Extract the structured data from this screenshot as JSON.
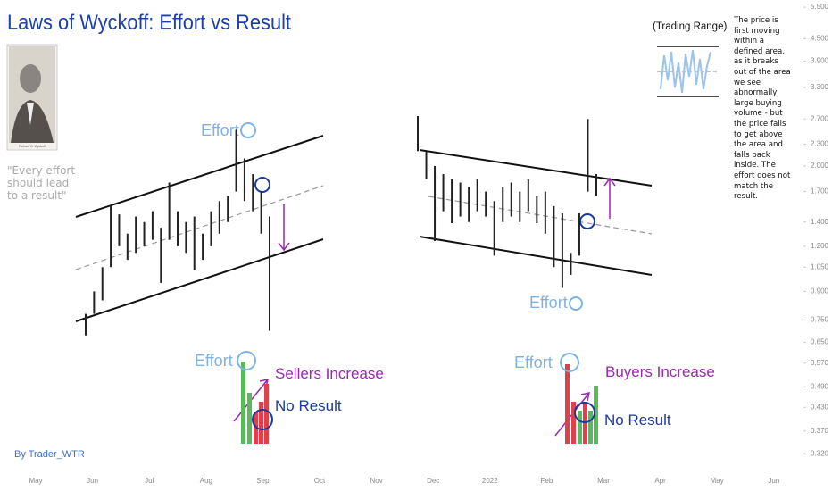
{
  "chart_data": {
    "type": "ohlc",
    "title": "Laws of Wyckoff: Effort vs Result",
    "color": "#222222",
    "yscale": "log",
    "ylim": [
      0.286,
      5.76
    ],
    "yticks": [
      {
        "value": 5.5,
        "label": "5.500"
      },
      {
        "value": 4.5,
        "label": "4.500"
      },
      {
        "value": 3.9,
        "label": "3.900"
      },
      {
        "value": 3.3,
        "label": "3.300"
      },
      {
        "value": 2.7,
        "label": "2.700"
      },
      {
        "value": 2.3,
        "label": "2.300"
      },
      {
        "value": 2.0,
        "label": "2.000"
      },
      {
        "value": 1.7,
        "label": "1.700"
      },
      {
        "value": 1.4,
        "label": "1.400"
      },
      {
        "value": 1.2,
        "label": "1.200"
      },
      {
        "value": 1.05,
        "label": "1.050"
      },
      {
        "value": 0.9,
        "label": "0.900"
      },
      {
        "value": 0.75,
        "label": "0.750"
      },
      {
        "value": 0.65,
        "label": "0.650"
      },
      {
        "value": 0.57,
        "label": "0.570"
      },
      {
        "value": 0.49,
        "label": "0.490"
      },
      {
        "value": 0.43,
        "label": "0.430"
      },
      {
        "value": 0.37,
        "label": "0.370"
      },
      {
        "value": 0.32,
        "label": "0.320"
      }
    ],
    "categories": [
      "May",
      "Jun",
      "Jul",
      "Aug",
      "Sep",
      "Oct",
      "Nov",
      "Dec",
      "2022",
      "Feb",
      "Mar",
      "Apr",
      "May",
      "Jun"
    ],
    "segments": [
      {
        "high": [
          0.78,
          0.9,
          1.05,
          1.56,
          1.47,
          1.3,
          1.45,
          1.4,
          1.5,
          1.35,
          1.8,
          1.5,
          1.4,
          1.45,
          1.3,
          1.5,
          1.6,
          1.65,
          2.52,
          2.1,
          1.9,
          1.7,
          1.45
        ],
        "low": [
          0.68,
          0.78,
          0.85,
          1.05,
          1.2,
          1.1,
          1.15,
          1.2,
          1.25,
          0.95,
          1.25,
          1.2,
          1.15,
          1.03,
          1.1,
          1.2,
          1.3,
          1.4,
          1.7,
          1.6,
          1.5,
          1.3,
          0.7
        ]
      },
      {
        "high": [
          2.75,
          2.2,
          2.0,
          1.9,
          1.84,
          1.8,
          1.75,
          1.84,
          1.7,
          1.6,
          1.75,
          1.8,
          1.7,
          1.84,
          1.65,
          1.7,
          1.55,
          1.48,
          1.15,
          1.48,
          2.7,
          1.9
        ],
        "low": [
          2.2,
          1.84,
          1.24,
          1.5,
          1.39,
          1.45,
          1.4,
          1.5,
          1.45,
          1.13,
          1.4,
          1.45,
          1.4,
          1.5,
          1.39,
          1.3,
          1.05,
          0.92,
          1.0,
          1.13,
          1.7,
          1.65
        ]
      }
    ]
  },
  "annotations": {
    "quote": "\"Every effort should lead to a result\"",
    "photo_caption": "Richard D. Wyckoff",
    "effort_price_left": "Effort",
    "effort_price_right": "Effort",
    "effort_volume_left": "Effort",
    "effort_volume_right": "Effort",
    "sellers": "Sellers Increase",
    "buyers": "Buyers Increase",
    "no_result_left": "No Result",
    "no_result_right": "No Result",
    "range_title": "(Trading Range)",
    "description": "The price is first moving within a defined area, as it breaks out of the area we see abnormally large buying volume - but the price fails to get above the area and falls back inside. The effort does not match the result.",
    "author": "By Trader_WTR"
  }
}
